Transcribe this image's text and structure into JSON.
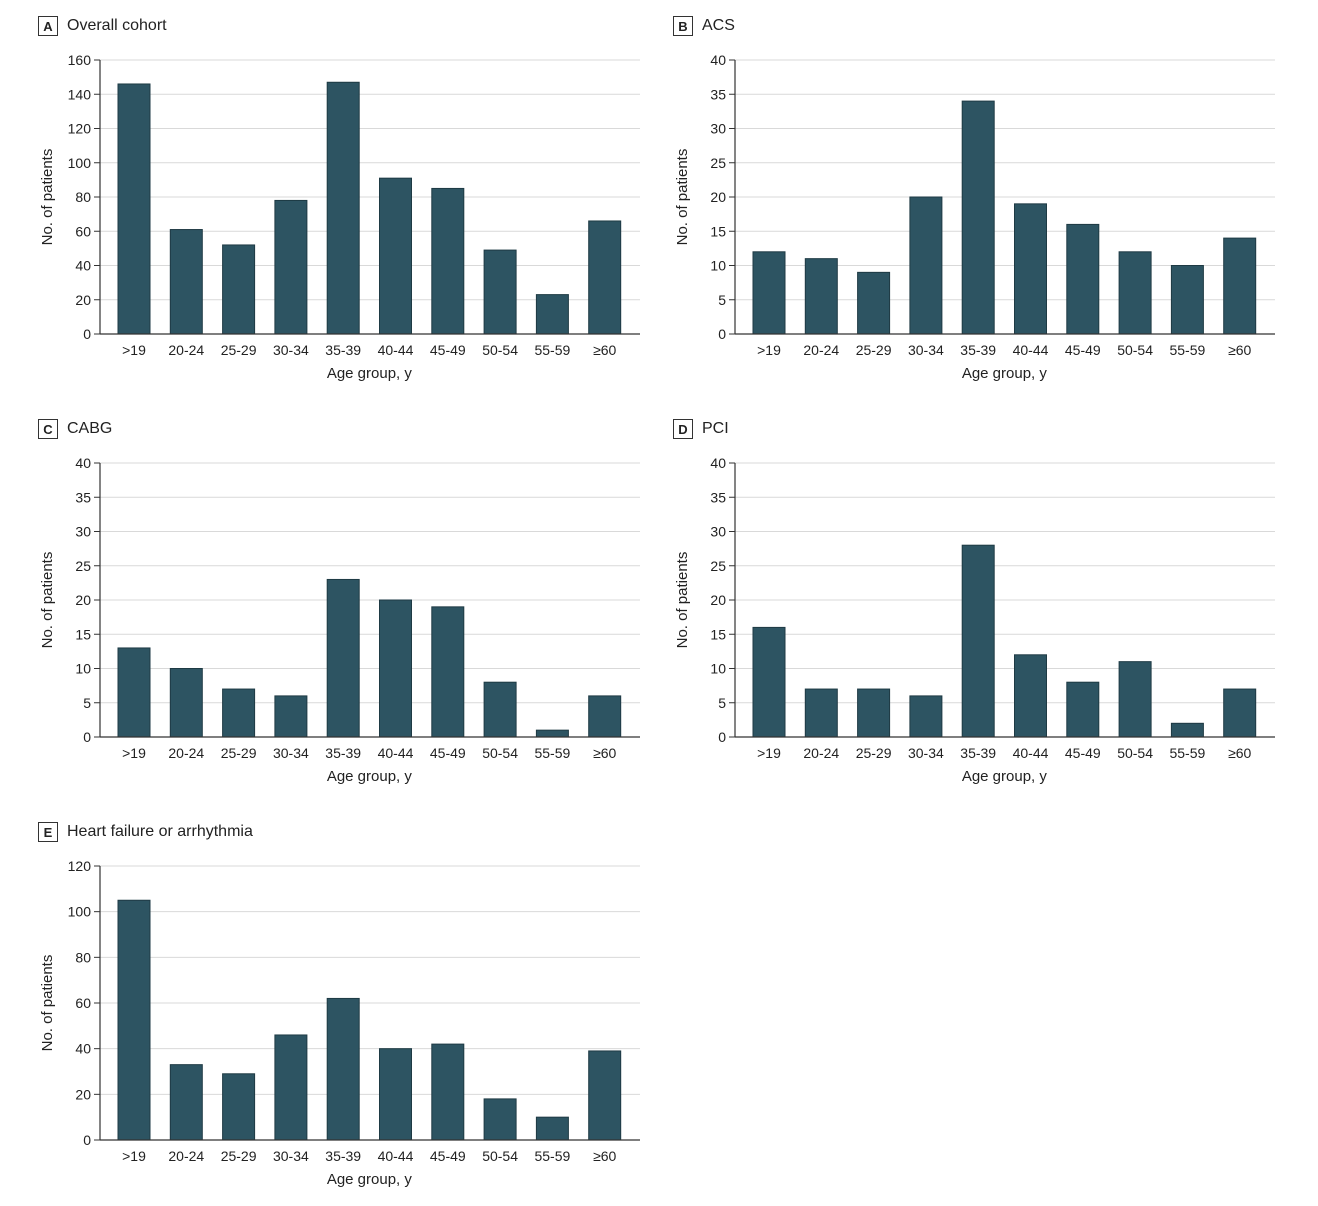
{
  "colors": {
    "bar": "#2d5462",
    "grid": "#d9d9d9",
    "axis": "#333333"
  },
  "chart_data": [
    {
      "type": "bar",
      "panel_label": "A",
      "title": "Overall cohort",
      "xlabel": "Age group, y",
      "ylabel": "No. of patients",
      "categories": [
        ">19",
        "20-24",
        "25-29",
        "30-34",
        "35-39",
        "40-44",
        "45-49",
        "50-54",
        "55-59",
        "≥60"
      ],
      "values": [
        146,
        61,
        52,
        78,
        147,
        91,
        85,
        49,
        23,
        66
      ],
      "ylim": [
        0,
        160
      ],
      "yticks": [
        0,
        20,
        40,
        60,
        80,
        100,
        120,
        140,
        160
      ],
      "grid": true
    },
    {
      "type": "bar",
      "panel_label": "B",
      "title": "ACS",
      "xlabel": "Age group, y",
      "ylabel": "No. of patients",
      "categories": [
        ">19",
        "20-24",
        "25-29",
        "30-34",
        "35-39",
        "40-44",
        "45-49",
        "50-54",
        "55-59",
        "≥60"
      ],
      "values": [
        12,
        11,
        9,
        20,
        34,
        19,
        16,
        12,
        10,
        14
      ],
      "ylim": [
        0,
        40
      ],
      "yticks": [
        0,
        5,
        10,
        15,
        20,
        25,
        30,
        35,
        40
      ],
      "grid": true
    },
    {
      "type": "bar",
      "panel_label": "C",
      "title": "CABG",
      "xlabel": "Age group, y",
      "ylabel": "No. of patients",
      "categories": [
        ">19",
        "20-24",
        "25-29",
        "30-34",
        "35-39",
        "40-44",
        "45-49",
        "50-54",
        "55-59",
        "≥60"
      ],
      "values": [
        13,
        10,
        7,
        6,
        23,
        20,
        19,
        8,
        1,
        6
      ],
      "ylim": [
        0,
        40
      ],
      "yticks": [
        0,
        5,
        10,
        15,
        20,
        25,
        30,
        35,
        40
      ],
      "grid": true
    },
    {
      "type": "bar",
      "panel_label": "D",
      "title": "PCI",
      "xlabel": "Age group, y",
      "ylabel": "No. of patients",
      "categories": [
        ">19",
        "20-24",
        "25-29",
        "30-34",
        "35-39",
        "40-44",
        "45-49",
        "50-54",
        "55-59",
        "≥60"
      ],
      "values": [
        16,
        7,
        7,
        6,
        28,
        12,
        8,
        11,
        2,
        7
      ],
      "ylim": [
        0,
        40
      ],
      "yticks": [
        0,
        5,
        10,
        15,
        20,
        25,
        30,
        35,
        40
      ],
      "grid": true
    },
    {
      "type": "bar",
      "panel_label": "E",
      "title": "Heart failure or arrhythmia",
      "xlabel": "Age group, y",
      "ylabel": "No. of patients",
      "categories": [
        ">19",
        "20-24",
        "25-29",
        "30-34",
        "35-39",
        "40-44",
        "45-49",
        "50-54",
        "55-59",
        "≥60"
      ],
      "values": [
        105,
        33,
        29,
        46,
        62,
        40,
        42,
        18,
        10,
        39
      ],
      "ylim": [
        0,
        120
      ],
      "yticks": [
        0,
        20,
        40,
        60,
        80,
        100,
        120
      ],
      "grid": true
    }
  ]
}
